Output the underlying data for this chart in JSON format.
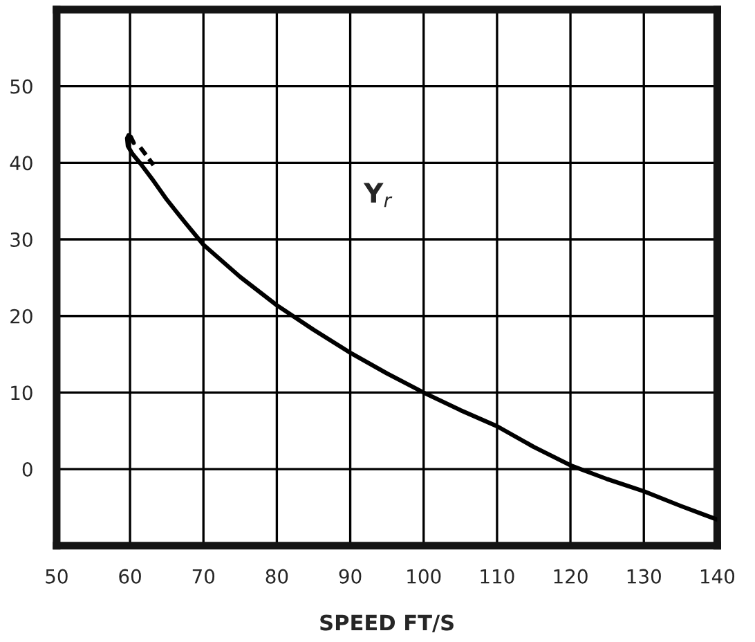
{
  "chart_data": {
    "type": "line",
    "xlabel": "SPEED FT/S",
    "xlim": [
      50,
      140
    ],
    "ylim": [
      -10,
      60
    ],
    "xticks": [
      50,
      60,
      70,
      80,
      90,
      100,
      110,
      120,
      130,
      140
    ],
    "yticks": [
      0,
      10,
      20,
      30,
      40,
      50
    ],
    "grid": true,
    "series": [
      {
        "color": "#000000",
        "x": [
          60.5,
          60.1,
          59.8,
          59.6,
          59.7,
          60.3,
          61.5,
          63,
          65,
          67.5,
          70,
          75,
          80,
          85,
          90,
          95,
          100,
          105,
          110,
          115,
          120,
          125,
          130,
          135,
          140
        ],
        "values": [
          42.6,
          43.4,
          43.6,
          43.2,
          42.2,
          41.2,
          39.8,
          37.9,
          35.2,
          32.2,
          29.3,
          25.1,
          21.4,
          18.2,
          15.2,
          12.5,
          10,
          7.7,
          5.6,
          2.9,
          0.5,
          -1.3,
          -2.9,
          -4.8,
          -6.6
        ]
      },
      {
        "color": "#000000",
        "line_style": "dashed",
        "x": [
          61.4,
          62.2,
          63.2
        ],
        "values": [
          42,
          41,
          39.7
        ]
      }
    ],
    "annotations": [
      "Y$_{r}$"
    ]
  }
}
